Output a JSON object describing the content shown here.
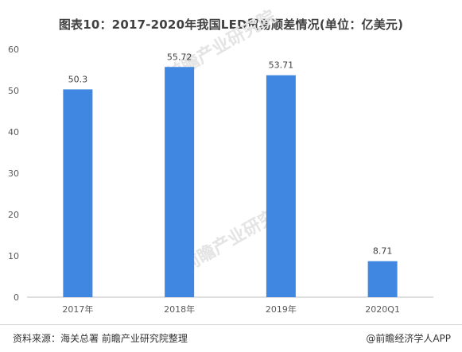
{
  "title": "图表10：2017-2020年我国LED贸易顺差情况(单位：亿美元)",
  "footer": {
    "source": "资料来源：海关总署 前瞻产业研究院整理",
    "credit": "@前瞻经济学人APP"
  },
  "watermark": "前瞻产业研究院",
  "colors": {
    "bar": "#3f87e0",
    "axis": "#bfbfbf"
  },
  "chart_data": {
    "type": "bar",
    "title": "图表10：2017-2020年我国LED贸易顺差情况(单位：亿美元)",
    "categories": [
      "2017年",
      "2018年",
      "2019年",
      "2020Q1"
    ],
    "values": [
      50.3,
      55.72,
      53.71,
      8.71
    ],
    "value_labels": [
      "50.3",
      "55.72",
      "53.71",
      "8.71"
    ],
    "y_ticks": [
      "0",
      "10",
      "20",
      "30",
      "40",
      "50",
      "60"
    ],
    "ylim": [
      0,
      60
    ],
    "xlabel": "",
    "ylabel": "",
    "grid": false,
    "legend": "none"
  }
}
